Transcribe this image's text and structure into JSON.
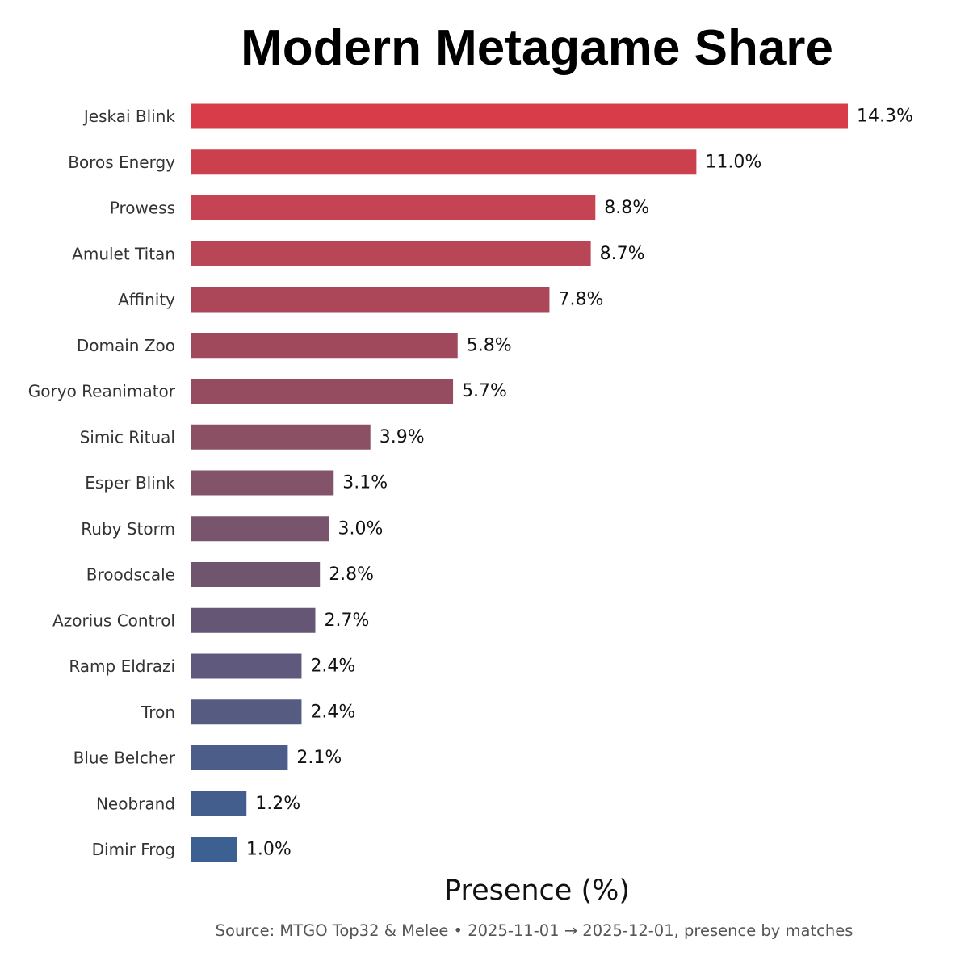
{
  "title": "Modern Metagame Share",
  "xlabel": "Presence (%)",
  "source_note": "Source: MTGO Top32 & Melee  •  2025-11-01 → 2025-12-01, presence by matches",
  "chart_data": {
    "type": "bar",
    "orientation": "horizontal",
    "title": "Modern Metagame Share",
    "xlabel": "Presence (%)",
    "ylabel": "",
    "xlim": [
      0,
      14.3
    ],
    "grid": false,
    "categories": [
      "Jeskai Blink",
      "Boros Energy",
      "Prowess",
      "Amulet Titan",
      "Affinity",
      "Domain Zoo",
      "Goryo Reanimator",
      "Simic Ritual",
      "Esper Blink",
      "Ruby Storm",
      "Broodscale",
      "Azorius Control",
      "Ramp Eldrazi",
      "Tron",
      "Blue Belcher",
      "Neobrand",
      "Dimir Frog"
    ],
    "values": [
      14.3,
      11.0,
      8.8,
      8.7,
      7.8,
      5.8,
      5.7,
      3.9,
      3.1,
      3.0,
      2.8,
      2.7,
      2.4,
      2.4,
      2.1,
      1.2,
      1.0
    ],
    "value_labels": [
      "14.3%",
      "11.0%",
      "8.8%",
      "8.7%",
      "7.8%",
      "5.8%",
      "5.7%",
      "3.9%",
      "3.1%",
      "3.0%",
      "2.8%",
      "2.7%",
      "2.4%",
      "2.4%",
      "2.1%",
      "1.2%",
      "1.0%"
    ],
    "colors": [
      "#D73C48",
      "#CC404E",
      "#C54453",
      "#B84656",
      "#AB4758",
      "#A0495C",
      "#964C60",
      "#8B5064",
      "#835469",
      "#78556C",
      "#6F566E",
      "#655676",
      "#5E597D",
      "#565B82",
      "#4D5D89",
      "#435E8C",
      "#3C6092"
    ]
  }
}
